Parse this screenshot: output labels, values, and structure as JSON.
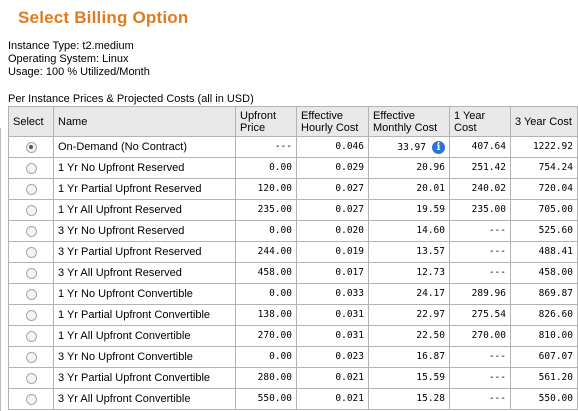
{
  "title": "Select Billing Option",
  "info": {
    "instance_type": "Instance Type: t2.medium",
    "operating_system": "Operating System: Linux",
    "usage": "Usage: 100 % Utilized/Month"
  },
  "caption": "Per Instance Prices & Projected Costs (all in USD)",
  "columns": {
    "select": "Select",
    "name": "Name",
    "upfront": "Upfront Price",
    "hourly": "Effective Hourly Cost",
    "monthly": "Effective Monthly Cost",
    "one_year": "1 Year Cost",
    "three_year": "3 Year Cost"
  },
  "rows": [
    {
      "name": "On-Demand (No Contract)",
      "upfront": "---",
      "hourly": "0.046",
      "monthly": "33.97",
      "one_year": "407.64",
      "three_year": "1222.92",
      "selected": true,
      "info": "i"
    },
    {
      "name": "1 Yr No Upfront Reserved",
      "upfront": "0.00",
      "hourly": "0.029",
      "monthly": "20.96",
      "one_year": "251.42",
      "three_year": "754.24"
    },
    {
      "name": "1 Yr Partial Upfront Reserved",
      "upfront": "120.00",
      "hourly": "0.027",
      "monthly": "20.01",
      "one_year": "240.02",
      "three_year": "720.04"
    },
    {
      "name": "1 Yr All Upfront Reserved",
      "upfront": "235.00",
      "hourly": "0.027",
      "monthly": "19.59",
      "one_year": "235.00",
      "three_year": "705.00"
    },
    {
      "name": "3 Yr No Upfront Reserved",
      "upfront": "0.00",
      "hourly": "0.020",
      "monthly": "14.60",
      "one_year": "---",
      "three_year": "525.60"
    },
    {
      "name": "3 Yr Partial Upfront Reserved",
      "upfront": "244.00",
      "hourly": "0.019",
      "monthly": "13.57",
      "one_year": "---",
      "three_year": "488.41"
    },
    {
      "name": "3 Yr All Upfront Reserved",
      "upfront": "458.00",
      "hourly": "0.017",
      "monthly": "12.73",
      "one_year": "---",
      "three_year": "458.00"
    },
    {
      "name": "1 Yr No Upfront Convertible",
      "upfront": "0.00",
      "hourly": "0.033",
      "monthly": "24.17",
      "one_year": "289.96",
      "three_year": "869.87"
    },
    {
      "name": "1 Yr Partial Upfront Convertible",
      "upfront": "138.00",
      "hourly": "0.031",
      "monthly": "22.97",
      "one_year": "275.54",
      "three_year": "826.60"
    },
    {
      "name": "1 Yr All Upfront Convertible",
      "upfront": "270.00",
      "hourly": "0.031",
      "monthly": "22.50",
      "one_year": "270.00",
      "three_year": "810.00"
    },
    {
      "name": "3 Yr No Upfront Convertible",
      "upfront": "0.00",
      "hourly": "0.023",
      "monthly": "16.87",
      "one_year": "---",
      "three_year": "607.07"
    },
    {
      "name": "3 Yr Partial Upfront Convertible",
      "upfront": "280.00",
      "hourly": "0.021",
      "monthly": "15.59",
      "one_year": "---",
      "three_year": "561.20"
    },
    {
      "name": "3 Yr All Upfront Convertible",
      "upfront": "550.00",
      "hourly": "0.021",
      "monthly": "15.28",
      "one_year": "---",
      "three_year": "550.00"
    }
  ]
}
